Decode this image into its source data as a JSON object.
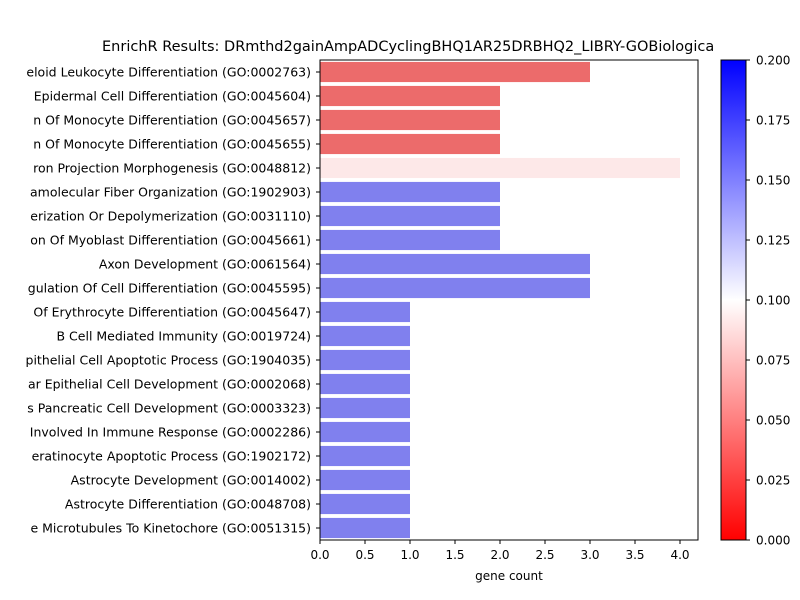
{
  "chart_data": {
    "type": "bar",
    "orientation": "horizontal",
    "title": "EnrichR Results: DRmthd2gainAmpADCyclingBHQ1AR25DRBHQ2_LIBRY-GOBiologica",
    "xlabel": "gene count",
    "ylabel": "",
    "xlim": [
      0,
      4.2
    ],
    "x_ticks": [
      "0.0",
      "0.5",
      "1.0",
      "1.5",
      "2.0",
      "2.5",
      "3.0",
      "3.5",
      "4.0"
    ],
    "grid": false,
    "categories": [
      "eloid Leukocyte Differentiation (GO:0002763)",
      "Epidermal Cell Differentiation (GO:0045604)",
      "n Of Monocyte Differentiation (GO:0045657)",
      "n Of Monocyte Differentiation (GO:0045655)",
      "ron Projection Morphogenesis (GO:0048812)",
      "amolecular Fiber Organization (GO:1902903)",
      "erization Or Depolymerization (GO:0031110)",
      "on Of Myoblast Differentiation (GO:0045661)",
      "Axon Development (GO:0061564)",
      "gulation Of Cell Differentiation (GO:0045595)",
      "Of Erythrocyte Differentiation (GO:0045647)",
      "B Cell Mediated Immunity (GO:0019724)",
      "pithelial Cell Apoptotic Process (GO:1904035)",
      "ar Epithelial Cell Development (GO:0002068)",
      "s Pancreatic Cell Development (GO:0003323)",
      "Involved In Immune Response (GO:0002286)",
      "eratinocyte Apoptotic Process (GO:1902172)",
      "Astrocyte Development (GO:0014002)",
      "Astrocyte Differentiation (GO:0048708)",
      "e Microtubules To Kinetochore (GO:0051315)"
    ],
    "values": [
      3,
      2,
      2,
      2,
      4,
      2,
      2,
      2,
      3,
      3,
      1,
      1,
      1,
      1,
      1,
      1,
      1,
      1,
      1,
      1
    ],
    "bar_colors": [
      "#ec6b6b",
      "#ec6b6b",
      "#ec6b6b",
      "#ec6b6b",
      "#fde8e8",
      "#8080ee",
      "#8080ee",
      "#8080ee",
      "#8080ee",
      "#8080ee",
      "#8080ee",
      "#8080ee",
      "#8080ee",
      "#8080ee",
      "#8080ee",
      "#8080ee",
      "#8080ee",
      "#8080ee",
      "#8080ee",
      "#8080ee"
    ],
    "colorbar": {
      "range": [
        0,
        0.2
      ],
      "tick_labels": [
        "0.000",
        "0.025",
        "0.050",
        "0.075",
        "0.100",
        "0.125",
        "0.150",
        "0.175",
        "0.200"
      ],
      "colors": [
        "#ff0000",
        "#ffffff",
        "#0000ff"
      ]
    }
  }
}
